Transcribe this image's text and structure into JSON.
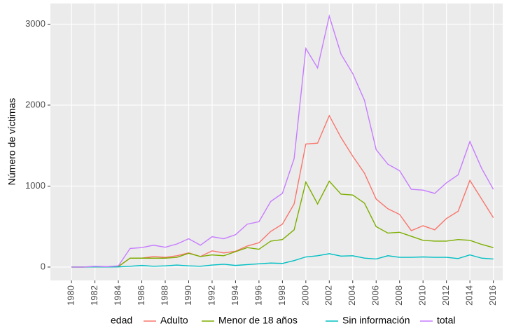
{
  "chart_data": {
    "type": "line",
    "y_label": "Número de víctimas",
    "legend_title": "edad",
    "x": [
      1980,
      1981,
      1982,
      1983,
      1984,
      1985,
      1986,
      1987,
      1988,
      1989,
      1990,
      1991,
      1992,
      1993,
      1994,
      1995,
      1996,
      1997,
      1998,
      1999,
      2000,
      2001,
      2002,
      2003,
      2004,
      2005,
      2006,
      2007,
      2008,
      2009,
      2010,
      2011,
      2012,
      2013,
      2014,
      2015,
      2016
    ],
    "series": [
      {
        "name": "Adulto",
        "color": "#F8766D",
        "values": [
          0,
          0,
          5,
          2,
          8,
          110,
          110,
          130,
          120,
          140,
          175,
          130,
          200,
          175,
          195,
          260,
          300,
          440,
          530,
          780,
          1520,
          1530,
          1870,
          1600,
          1370,
          1160,
          840,
          720,
          650,
          450,
          510,
          460,
          600,
          690,
          1070,
          840,
          610
        ]
      },
      {
        "name": "Menor de 18 años",
        "color": "#7CAE00",
        "values": [
          0,
          0,
          3,
          2,
          5,
          110,
          110,
          110,
          110,
          120,
          170,
          130,
          150,
          140,
          190,
          240,
          220,
          320,
          340,
          460,
          1050,
          780,
          1060,
          900,
          890,
          790,
          500,
          420,
          430,
          380,
          330,
          320,
          320,
          340,
          330,
          280,
          240
        ]
      },
      {
        "name": "Sin información",
        "color": "#00BFC4",
        "values": [
          0,
          0,
          2,
          1,
          2,
          10,
          20,
          10,
          15,
          25,
          15,
          10,
          25,
          35,
          20,
          30,
          40,
          50,
          45,
          80,
          125,
          140,
          165,
          135,
          140,
          110,
          100,
          140,
          120,
          120,
          125,
          120,
          120,
          105,
          150,
          110,
          100
        ]
      },
      {
        "name": "total",
        "color": "#C77CFF",
        "values": [
          0,
          0,
          10,
          5,
          15,
          230,
          240,
          270,
          245,
          285,
          350,
          270,
          375,
          350,
          400,
          530,
          560,
          810,
          910,
          1340,
          2700,
          2460,
          3100,
          2630,
          2390,
          2060,
          1450,
          1270,
          1190,
          960,
          950,
          910,
          1040,
          1140,
          1550,
          1220,
          960
        ]
      }
    ],
    "xlim": [
      1978.2,
      2016.8
    ],
    "xticks": [
      1980,
      1982,
      1984,
      1986,
      1988,
      1990,
      1992,
      1994,
      1996,
      1998,
      2000,
      2002,
      2004,
      2006,
      2008,
      2010,
      2012,
      2014,
      2016
    ],
    "ylim": [
      -165,
      3255
    ],
    "yticks": [
      0,
      1000,
      2000,
      3000
    ],
    "grid": true,
    "legend": "bottom"
  }
}
